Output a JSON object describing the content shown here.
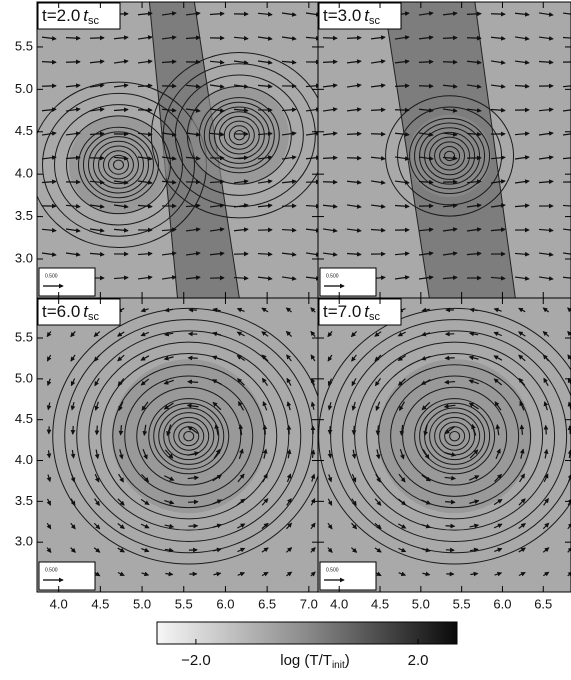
{
  "chart_data": {
    "type": "contour",
    "time_unit": "t",
    "time_unit_subscript": "sc",
    "reference_arrow_label": "0.500",
    "panels": [
      {
        "label": "t=2.0"
      },
      {
        "label": "t=3.0"
      },
      {
        "label": "t=6.0"
      },
      {
        "label": "t=7.0"
      }
    ],
    "columns": [
      {
        "xlim": [
          3.74,
          7.11
        ],
        "xticks": [
          {
            "value": 4,
            "label": "4.0"
          },
          4.5,
          {
            "value": 5,
            "label": "5.0"
          },
          5.5,
          {
            "value": 6,
            "label": "6.0"
          },
          6.5,
          {
            "value": 7,
            "label": "7.0"
          }
        ]
      },
      {
        "xlim": [
          3.74,
          6.84
        ],
        "xticks": [
          {
            "value": 4,
            "label": "4.0"
          },
          4.5,
          {
            "value": 5,
            "label": "5.0"
          },
          5.5,
          {
            "value": 6,
            "label": "6.0"
          },
          6.5
        ]
      }
    ],
    "rows": [
      {
        "ylim": [
          2.54,
          6.03
        ],
        "yticks": [
          {
            "value": 3,
            "label": "3.0"
          },
          3.5,
          {
            "value": 4,
            "label": "4.0"
          },
          4.5,
          {
            "value": 5,
            "label": "5.0"
          },
          5.5
        ]
      },
      {
        "ylim": [
          2.39,
          5.99
        ],
        "yticks": [
          {
            "value": 3,
            "label": "3.0"
          },
          3.5,
          {
            "value": 4,
            "label": "4.0"
          },
          4.5,
          {
            "value": 5,
            "label": "5.0"
          },
          5.5
        ]
      }
    ],
    "colorbar": {
      "clim": [
        -2.7,
        2.7
      ],
      "ticks": [
        {
          "value": -2,
          "label": "−2.0"
        },
        {
          "value": 2,
          "label": "2.0"
        }
      ],
      "label": "log (T/T",
      "label_subscript": "init",
      "label_close": ")"
    }
  }
}
